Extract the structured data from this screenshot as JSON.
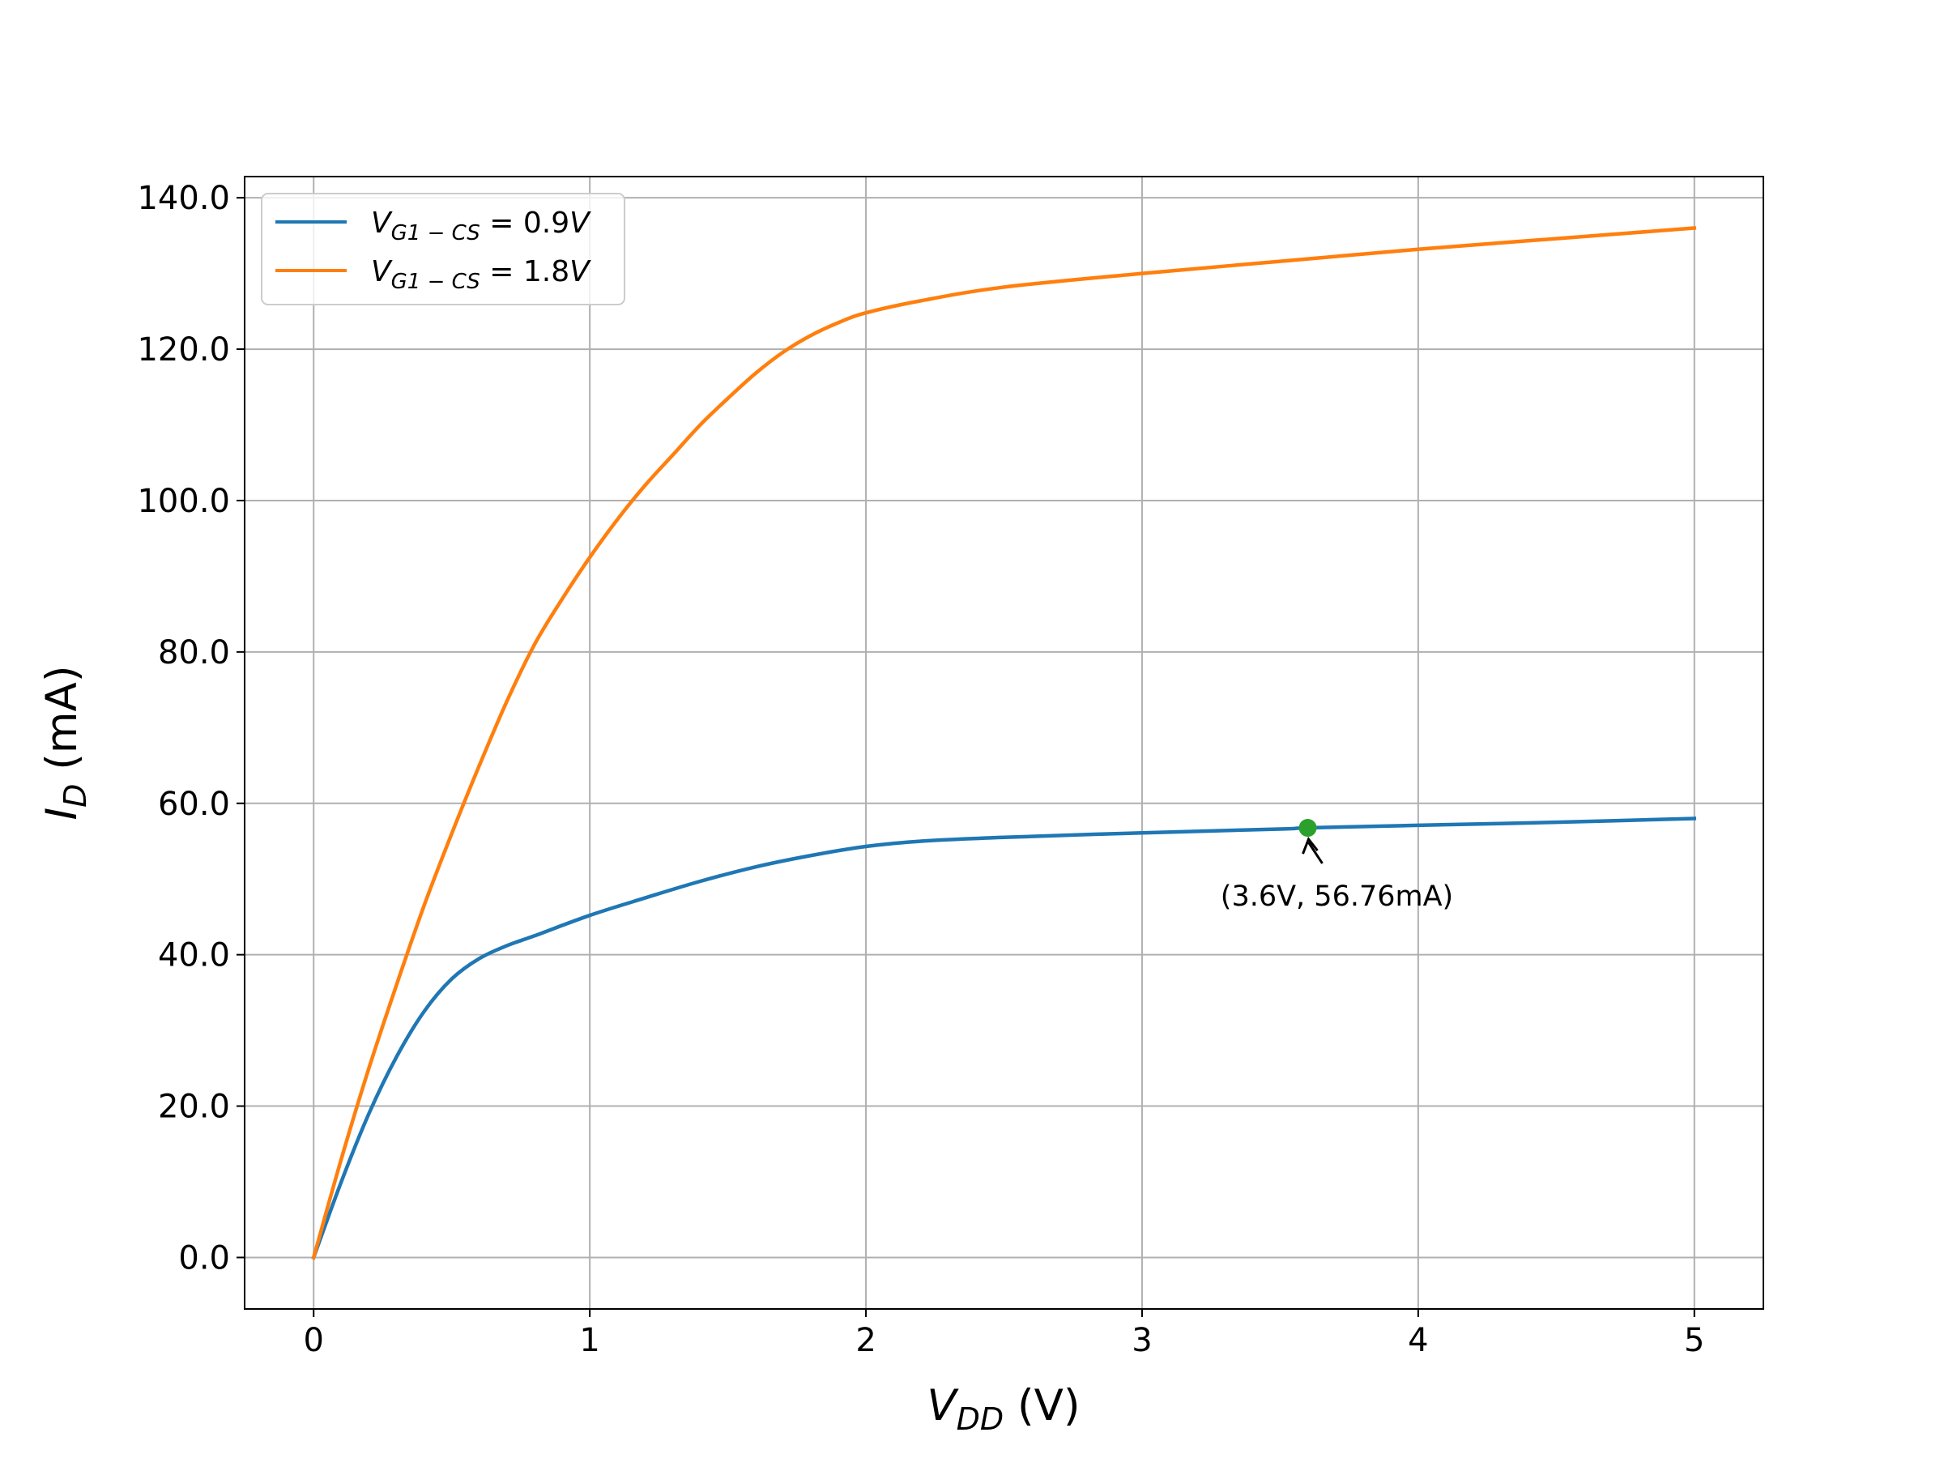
{
  "chart_data": {
    "type": "line",
    "xlabel": {
      "main": "V",
      "sub": "DD",
      "unit": " (V)"
    },
    "ylabel": {
      "main": "I",
      "sub": "D",
      "unit": " (mA)"
    },
    "xlim": [
      -0.25,
      5.25
    ],
    "ylim": [
      -6.8,
      142.8
    ],
    "x_ticks": [
      0,
      1,
      2,
      3,
      4,
      5
    ],
    "x_tick_labels": [
      "0",
      "1",
      "2",
      "3",
      "4",
      "5"
    ],
    "y_ticks": [
      0,
      20,
      40,
      60,
      80,
      100,
      120,
      140
    ],
    "y_tick_labels": [
      "0.0",
      "20.0",
      "40.0",
      "60.0",
      "80.0",
      "100.0",
      "120.0",
      "140.0"
    ],
    "grid": true,
    "legend_position": "top-left",
    "series": [
      {
        "name": "V_{G1-CS} = 0.9V",
        "legend": {
          "v": "V",
          "sub": "G1 − CS",
          "eq": " = 0.9",
          "unit": "V"
        },
        "color": "#1f77b4",
        "x": [
          0,
          0.1,
          0.2,
          0.3,
          0.4,
          0.5,
          0.6,
          0.7,
          0.8,
          1.0,
          1.2,
          1.4,
          1.6,
          1.8,
          2.0,
          2.2,
          2.5,
          3.0,
          3.5,
          3.6,
          4.0,
          4.5,
          5.0
        ],
        "y": [
          0,
          10,
          19,
          26.5,
          32.5,
          36.8,
          39.5,
          41.2,
          42.5,
          45.2,
          47.5,
          49.7,
          51.6,
          53.1,
          54.3,
          55.0,
          55.5,
          56.1,
          56.6,
          56.76,
          57.1,
          57.5,
          58.0
        ]
      },
      {
        "name": "V_{G1-CS} = 1.8V",
        "legend": {
          "v": "V",
          "sub": "G1 − CS",
          "eq": " = 1.8",
          "unit": "V"
        },
        "color": "#ff7f0e",
        "x": [
          0,
          0.1,
          0.2,
          0.3,
          0.4,
          0.5,
          0.6,
          0.7,
          0.8,
          0.9,
          1.0,
          1.1,
          1.2,
          1.3,
          1.4,
          1.5,
          1.6,
          1.7,
          1.8,
          1.9,
          2.0,
          2.2,
          2.5,
          3.0,
          3.5,
          4.0,
          4.5,
          5.0
        ],
        "y": [
          0,
          13,
          25,
          36,
          46.5,
          56,
          65,
          73.5,
          81,
          87,
          92.5,
          97.5,
          102,
          106,
          110,
          113.5,
          116.8,
          119.6,
          121.8,
          123.5,
          124.8,
          126.4,
          128.2,
          130.0,
          131.6,
          133.2,
          134.6,
          136.0
        ]
      }
    ],
    "annotation": {
      "label": "(3.6V, 56.76mA)",
      "point": [
        3.6,
        56.76
      ],
      "color": "#2ca02c",
      "text_at": [
        3.6,
        46.5
      ]
    }
  }
}
